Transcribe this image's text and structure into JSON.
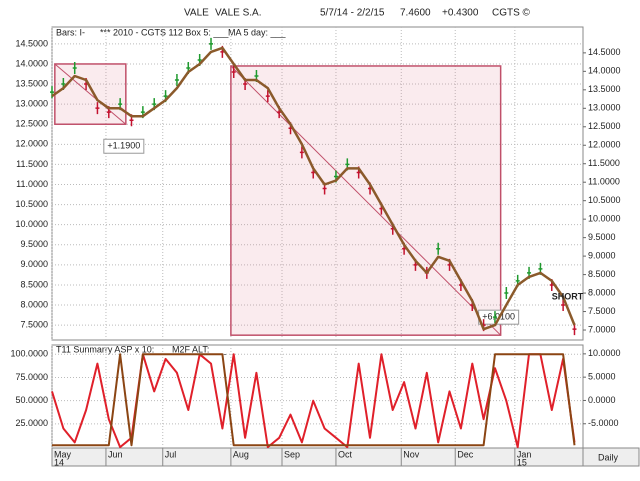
{
  "header": {
    "symbol": "VALE",
    "name": "VALE S.A.",
    "date_range": "5/7/14 - 2/2/15",
    "last": "7.4600",
    "change": "+0.4300",
    "source": "CGTS ©"
  },
  "chart_data": [
    {
      "type": "price",
      "box_legend": "*** 2010 - CGTS 112 Box 5: ___",
      "x": [
        0,
        4,
        8,
        12,
        16,
        20,
        24,
        28,
        32,
        36,
        40,
        44,
        48,
        52,
        56,
        60,
        64,
        68,
        72,
        76,
        80,
        84,
        88,
        92,
        96,
        100,
        104,
        108,
        112,
        116,
        120,
        124,
        128,
        132,
        136,
        140,
        144,
        148,
        152,
        156,
        160,
        164,
        168,
        172,
        176,
        180,
        184
      ],
      "xlim": [
        0,
        187
      ],
      "series": [
        {
          "name": "Bars: I-",
          "up_color": "#1f9a2e",
          "down_color": "#c4122f",
          "values": [
            13.3,
            13.5,
            13.9,
            13.5,
            12.9,
            12.8,
            13.0,
            12.6,
            12.8,
            13.0,
            13.2,
            13.6,
            13.9,
            14.1,
            14.5,
            14.3,
            13.8,
            13.5,
            13.7,
            13.2,
            12.8,
            12.4,
            11.8,
            11.3,
            10.9,
            11.2,
            11.5,
            11.3,
            10.9,
            10.4,
            9.9,
            9.4,
            9.0,
            8.8,
            9.4,
            9.0,
            8.5,
            8.0,
            7.5,
            7.7,
            8.3,
            8.6,
            8.8,
            8.9,
            8.5,
            8.0,
            7.4
          ]
        },
        {
          "name": "MA 5 day: ___",
          "color": "#8b5a2b",
          "values": [
            13.2,
            13.4,
            13.7,
            13.6,
            13.1,
            12.9,
            12.9,
            12.7,
            12.7,
            12.9,
            13.1,
            13.4,
            13.8,
            14.0,
            14.3,
            14.4,
            14.0,
            13.6,
            13.6,
            13.4,
            12.9,
            12.5,
            12.0,
            11.4,
            11.0,
            11.1,
            11.4,
            11.4,
            11.0,
            10.5,
            10.0,
            9.5,
            9.1,
            8.8,
            9.2,
            9.1,
            8.6,
            8.1,
            7.4,
            7.5,
            8.0,
            8.5,
            8.7,
            8.8,
            8.6,
            8.2,
            7.5
          ]
        }
      ],
      "ylim": [
        7.13,
        14.92
      ],
      "yticks": [
        {
          "value": 14.5,
          "label": "14.5000"
        },
        {
          "value": 14.0,
          "label": "14.0000"
        },
        {
          "value": 13.5,
          "label": "13.5000"
        },
        {
          "value": 13.0,
          "label": "13.0000"
        },
        {
          "value": 12.5,
          "label": "12.5000"
        },
        {
          "value": 12.0,
          "label": "12.0000"
        },
        {
          "value": 11.5,
          "label": "11.5000"
        },
        {
          "value": 11.0,
          "label": "11.0000"
        },
        {
          "value": 10.5,
          "label": "10.5000"
        },
        {
          "value": 10.0,
          "label": "10.0000"
        },
        {
          "value": 9.5,
          "label": "9.5000"
        },
        {
          "value": 9.0,
          "label": "9.0000"
        },
        {
          "value": 8.5,
          "label": "8.5000"
        },
        {
          "value": 8.0,
          "label": "8.0000"
        },
        {
          "value": 7.5,
          "label": "7.5000"
        }
      ],
      "y2lim": [
        6.73,
        15.2
      ],
      "y2ticks": [
        {
          "value": 14.5,
          "label": "14.5000"
        },
        {
          "value": 14.0,
          "label": "14.0000"
        },
        {
          "value": 13.5,
          "label": "13.5000"
        },
        {
          "value": 13.0,
          "label": "13.0000"
        },
        {
          "value": 12.5,
          "label": "12.5000"
        },
        {
          "value": 12.0,
          "label": "12.0000"
        },
        {
          "value": 11.5,
          "label": "11.5000"
        },
        {
          "value": 11.0,
          "label": "11.0000"
        },
        {
          "value": 10.5,
          "label": "10.5000"
        },
        {
          "value": 10.0,
          "label": "10.0000"
        },
        {
          "value": 9.5,
          "label": "9.5000"
        },
        {
          "value": 9.0,
          "label": "9.0000"
        },
        {
          "value": 8.5,
          "label": "8.5000"
        },
        {
          "value": 8.0,
          "label": "8.0000"
        },
        {
          "value": 7.5,
          "label": "7.5000"
        },
        {
          "value": 7.0,
          "label": "7.0000"
        }
      ],
      "boxes": [
        {
          "x": [
            1,
            26
          ],
          "y": [
            12.5,
            14.0
          ],
          "label": "+1.1900",
          "color": "#c0506a"
        },
        {
          "x": [
            63,
            158
          ],
          "y": [
            7.25,
            13.95
          ],
          "label": "+6.0100",
          "color": "#c0506a"
        }
      ],
      "annotations": [
        {
          "x": 176,
          "y": 8.2,
          "text": "SHORT"
        }
      ],
      "grid": true
    },
    {
      "type": "line",
      "x": [
        0,
        4,
        8,
        12,
        16,
        20,
        24,
        28,
        32,
        36,
        40,
        44,
        48,
        52,
        56,
        60,
        64,
        68,
        72,
        76,
        80,
        84,
        88,
        92,
        96,
        100,
        104,
        108,
        112,
        116,
        120,
        124,
        128,
        132,
        136,
        140,
        144,
        148,
        152,
        156,
        160,
        164,
        168,
        172,
        176,
        180,
        184
      ],
      "xlim": [
        0,
        187
      ],
      "series": [
        {
          "name": "T11 Sunmarry ASP x 10: ___",
          "color": "#e0202a",
          "values": [
            60,
            20,
            5,
            40,
            90,
            30,
            0,
            10,
            100,
            60,
            95,
            80,
            40,
            100,
            90,
            20,
            100,
            10,
            80,
            0,
            10,
            35,
            5,
            50,
            20,
            10,
            0,
            90,
            10,
            100,
            40,
            70,
            20,
            80,
            5,
            60,
            20,
            90,
            30,
            85,
            50,
            0,
            100,
            100,
            40,
            95,
            5
          ]
        },
        {
          "name": "M2F ALT: ___",
          "color": "#8b4513",
          "values": [
            2,
            2,
            2,
            2,
            2,
            2,
            100,
            2,
            100,
            100,
            100,
            100,
            100,
            100,
            100,
            100,
            2,
            2,
            2,
            2,
            2,
            2,
            2,
            2,
            2,
            2,
            2,
            2,
            2,
            2,
            2,
            2,
            2,
            2,
            2,
            2,
            2,
            2,
            2,
            100,
            100,
            100,
            100,
            100,
            100,
            100,
            2
          ]
        }
      ],
      "ylim": [
        -1,
        110
      ],
      "yticks": [
        {
          "value": 100,
          "label": "100.0000"
        },
        {
          "value": 75,
          "label": "75.0000"
        },
        {
          "value": 50,
          "label": "50.0000"
        },
        {
          "value": 25,
          "label": "25.0000"
        }
      ],
      "y2lim": [
        -10.2,
        11.9
      ],
      "y2ticks": [
        {
          "value": 10,
          "label": "10.0000"
        },
        {
          "value": 5,
          "label": "5.0000"
        },
        {
          "value": 0,
          "label": "0.0000"
        },
        {
          "value": -5,
          "label": "-5.0000"
        }
      ],
      "xticks": [
        {
          "value": 0,
          "label": "May",
          "year": "14"
        },
        {
          "value": 19,
          "label": "Jun"
        },
        {
          "value": 39,
          "label": "Jul"
        },
        {
          "value": 63,
          "label": "Aug"
        },
        {
          "value": 81,
          "label": "Sep"
        },
        {
          "value": 100,
          "label": "Oct"
        },
        {
          "value": 123,
          "label": "Nov"
        },
        {
          "value": 142,
          "label": "Dec"
        },
        {
          "value": 163,
          "label": "Jan",
          "year": "15"
        }
      ],
      "x_label": "Daily",
      "grid": true
    }
  ]
}
